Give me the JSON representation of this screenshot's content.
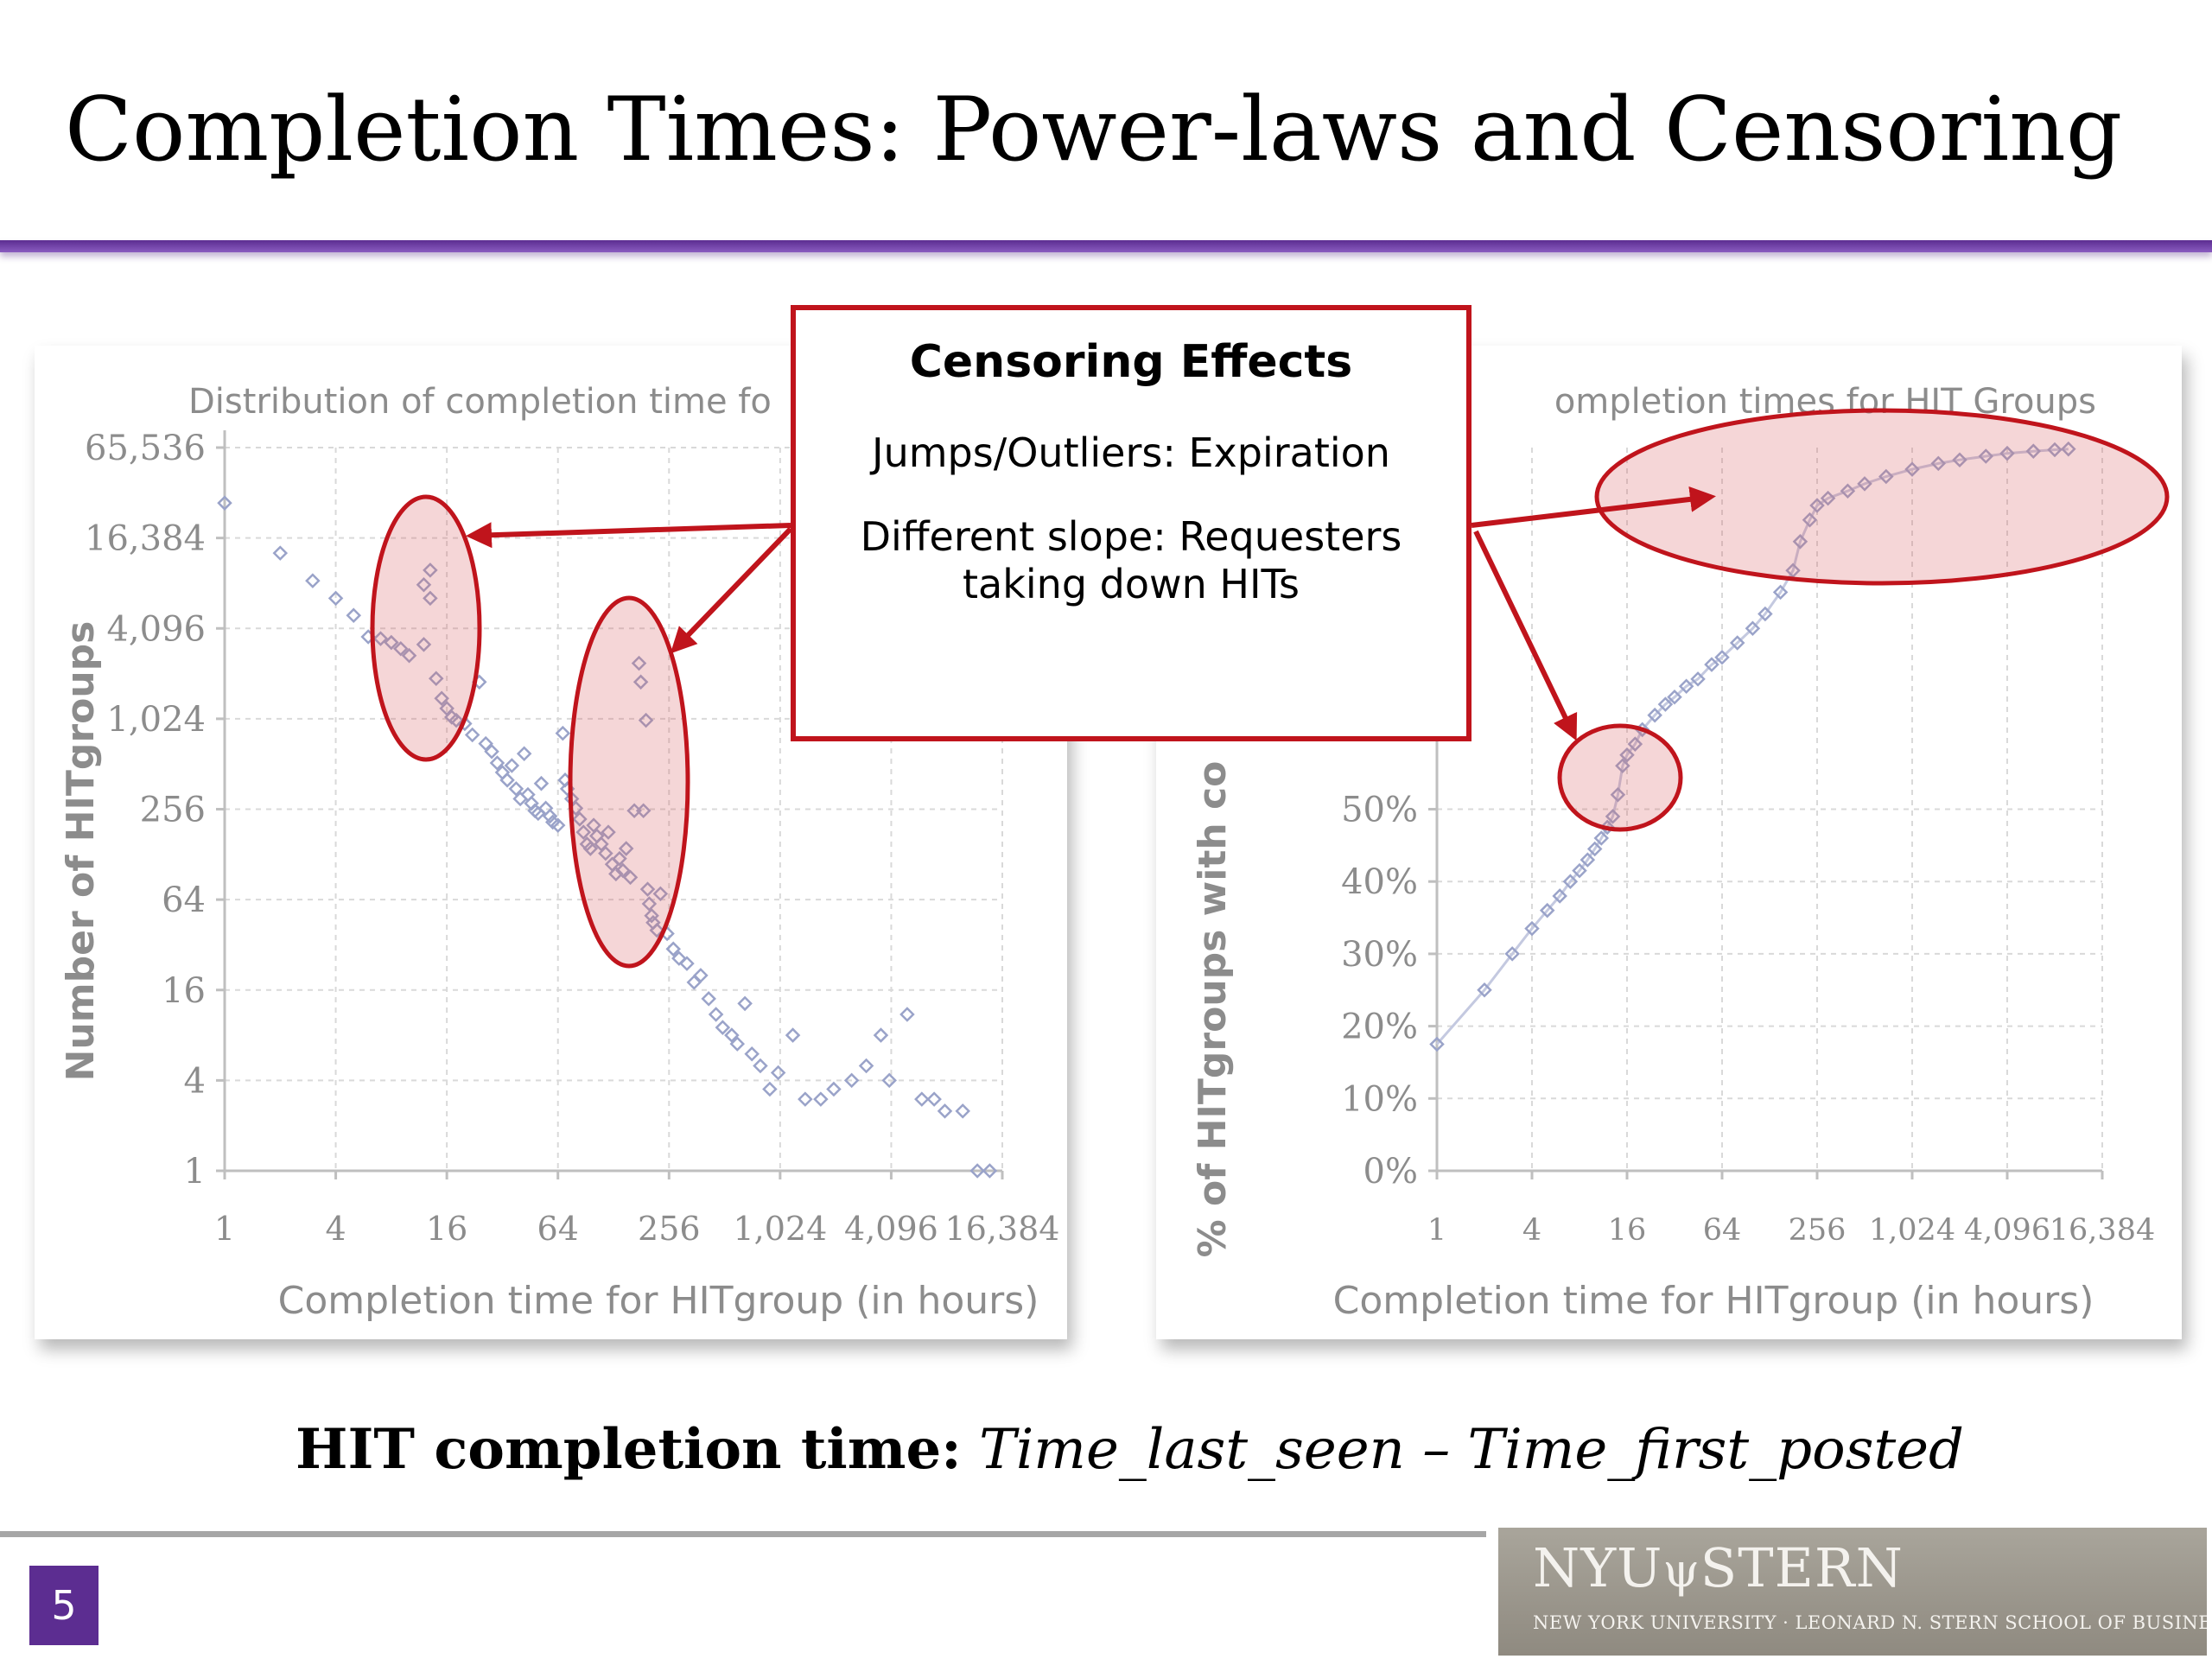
{
  "slide": {
    "title": "Completion Times: Power-laws and Censoring",
    "formula_label": "HIT completion time:",
    "formula_expr": "Time_last_seen – Time_first_posted",
    "page_number": "5",
    "logo_line1_a": "NYU",
    "logo_line1_b": "STERN",
    "logo_line2": "NEW YORK UNIVERSITY · LEONARD N. STERN SCHOOL OF BUSINESS",
    "colors": {
      "accent": "#5c2d91",
      "callout_border": "#c0141c",
      "marker": "#9aa3c9"
    }
  },
  "callout": {
    "heading": "Censoring Effects",
    "line1": "Jumps/Outliers: Expiration",
    "line2a": "Different slope: Requesters",
    "line2b": "taking down HITs"
  },
  "chart_data": [
    {
      "type": "scatter",
      "title": "Distribution of completion time fo",
      "xlabel": "Completion time for HITgroup (in hours)",
      "ylabel": "Number of HITgroups",
      "scale": "log2",
      "xlim": [
        1,
        16384
      ],
      "ylim": [
        1,
        65536
      ],
      "x_ticks": [
        "1",
        "4",
        "16",
        "64",
        "256",
        "1,024",
        "4,096",
        "16,384"
      ],
      "y_ticks": [
        "65,536",
        "16,384",
        "4,096",
        "1,024",
        "256",
        "64",
        "16",
        "4",
        "1"
      ],
      "grid": true,
      "points": [
        [
          1,
          28000
        ],
        [
          2,
          13000
        ],
        [
          3,
          8500
        ],
        [
          4,
          6500
        ],
        [
          5,
          5000
        ],
        [
          6,
          3600
        ],
        [
          7,
          3500
        ],
        [
          8,
          3300
        ],
        [
          9,
          3000
        ],
        [
          10,
          2700
        ],
        [
          12,
          8000
        ],
        [
          12,
          3200
        ],
        [
          13,
          10000
        ],
        [
          13,
          6500
        ],
        [
          14,
          1900
        ],
        [
          15,
          1400
        ],
        [
          16,
          1200
        ],
        [
          17,
          1050
        ],
        [
          18,
          1000
        ],
        [
          20,
          950
        ],
        [
          22,
          800
        ],
        [
          24,
          1800
        ],
        [
          26,
          700
        ],
        [
          28,
          620
        ],
        [
          30,
          520
        ],
        [
          32,
          450
        ],
        [
          34,
          400
        ],
        [
          36,
          500
        ],
        [
          38,
          350
        ],
        [
          40,
          300
        ],
        [
          42,
          600
        ],
        [
          44,
          320
        ],
        [
          46,
          280
        ],
        [
          48,
          250
        ],
        [
          50,
          240
        ],
        [
          52,
          380
        ],
        [
          55,
          260
        ],
        [
          58,
          230
        ],
        [
          60,
          210
        ],
        [
          64,
          200
        ],
        [
          68,
          820
        ],
        [
          70,
          400
        ],
        [
          72,
          350
        ],
        [
          76,
          300
        ],
        [
          80,
          260
        ],
        [
          84,
          220
        ],
        [
          88,
          180
        ],
        [
          92,
          150
        ],
        [
          96,
          140
        ],
        [
          100,
          200
        ],
        [
          104,
          170
        ],
        [
          110,
          150
        ],
        [
          116,
          130
        ],
        [
          120,
          180
        ],
        [
          126,
          110
        ],
        [
          132,
          95
        ],
        [
          138,
          120
        ],
        [
          144,
          100
        ],
        [
          150,
          140
        ],
        [
          158,
          90
        ],
        [
          166,
          250
        ],
        [
          176,
          2400
        ],
        [
          180,
          1800
        ],
        [
          186,
          250
        ],
        [
          192,
          1000
        ],
        [
          196,
          75
        ],
        [
          200,
          60
        ],
        [
          206,
          50
        ],
        [
          210,
          45
        ],
        [
          220,
          40
        ],
        [
          230,
          70
        ],
        [
          250,
          38
        ],
        [
          270,
          30
        ],
        [
          290,
          26
        ],
        [
          320,
          24
        ],
        [
          350,
          18
        ],
        [
          380,
          20
        ],
        [
          420,
          14
        ],
        [
          460,
          11
        ],
        [
          500,
          9
        ],
        [
          560,
          8
        ],
        [
          600,
          7
        ],
        [
          660,
          13
        ],
        [
          720,
          6
        ],
        [
          800,
          5
        ],
        [
          900,
          3.5
        ],
        [
          1000,
          4.5
        ],
        [
          1200,
          8
        ],
        [
          1400,
          3
        ],
        [
          1700,
          3
        ],
        [
          2000,
          3.5
        ],
        [
          2500,
          4
        ],
        [
          3000,
          5
        ],
        [
          3600,
          8
        ],
        [
          4000,
          4
        ],
        [
          5000,
          11
        ],
        [
          6000,
          3
        ],
        [
          7000,
          3
        ],
        [
          8000,
          2.5
        ],
        [
          10000,
          2.5
        ],
        [
          12000,
          1
        ],
        [
          14000,
          1
        ]
      ]
    },
    {
      "type": "scatter",
      "title": "ompletion times for HIT Groups",
      "xlabel": "Completion time for HITgroup (in hours)",
      "ylabel": "% of HITgroups with co",
      "scale": "log2",
      "xlim": [
        1,
        16384
      ],
      "ylim": [
        0,
        100
      ],
      "x_ticks": [
        "1",
        "4",
        "16",
        "64",
        "256",
        "1,024",
        "4,096",
        "16,384"
      ],
      "y_ticks": [
        "50%",
        "40%",
        "30%",
        "20%",
        "10%",
        "0%"
      ],
      "grid": true,
      "points": [
        [
          1,
          17.5
        ],
        [
          2,
          25
        ],
        [
          3,
          30
        ],
        [
          4,
          33.5
        ],
        [
          5,
          36
        ],
        [
          6,
          38
        ],
        [
          7,
          40
        ],
        [
          8,
          41.5
        ],
        [
          9,
          43
        ],
        [
          10,
          44.5
        ],
        [
          11,
          46
        ],
        [
          12,
          47.5
        ],
        [
          13,
          49
        ],
        [
          14,
          52
        ],
        [
          15,
          56
        ],
        [
          16,
          57.5
        ],
        [
          18,
          59
        ],
        [
          20,
          61
        ],
        [
          24,
          63
        ],
        [
          28,
          64.5
        ],
        [
          32,
          65.5
        ],
        [
          38,
          67
        ],
        [
          45,
          68
        ],
        [
          55,
          70
        ],
        [
          64,
          71
        ],
        [
          80,
          73
        ],
        [
          100,
          75
        ],
        [
          120,
          77
        ],
        [
          150,
          80
        ],
        [
          180,
          83
        ],
        [
          200,
          87
        ],
        [
          230,
          90
        ],
        [
          256,
          92
        ],
        [
          300,
          93
        ],
        [
          400,
          94
        ],
        [
          512,
          95
        ],
        [
          700,
          96
        ],
        [
          1024,
          97
        ],
        [
          1500,
          97.8
        ],
        [
          2048,
          98.3
        ],
        [
          3000,
          98.8
        ],
        [
          4096,
          99.2
        ],
        [
          6000,
          99.5
        ],
        [
          8192,
          99.7
        ],
        [
          10000,
          99.8
        ]
      ]
    }
  ]
}
